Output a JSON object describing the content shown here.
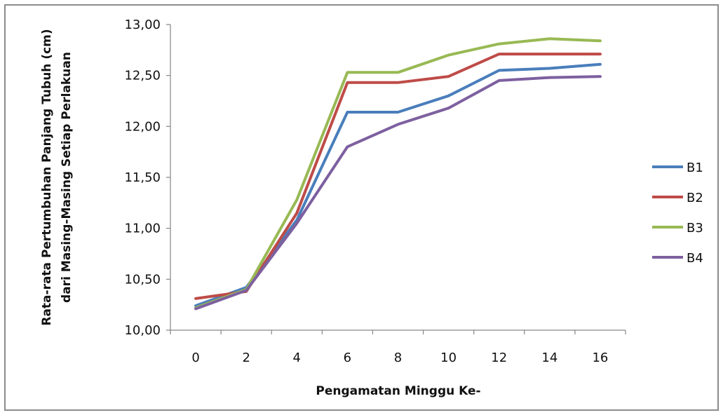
{
  "chart_data": {
    "type": "line",
    "title": "",
    "xlabel": "Pengamatan Minggu Ke-",
    "ylabel_line1": "Rata-rata Pertumbuhan Panjang Tubuh (cm)",
    "ylabel_line2": "dari Masing-Masing  Setiap Perlakuan",
    "categories": [
      "0",
      "2",
      "4",
      "6",
      "8",
      "10",
      "12",
      "14",
      "16"
    ],
    "y_ticks": [
      "10,00",
      "10,50",
      "11,00",
      "11,50",
      "12,00",
      "12,50",
      "13,00"
    ],
    "ylim": [
      10.0,
      13.0
    ],
    "grid": false,
    "legend_position": "right",
    "series": [
      {
        "name": "B1",
        "color": "#4a7ebb",
        "values": [
          10.24,
          10.42,
          11.08,
          12.14,
          12.14,
          12.3,
          12.55,
          12.57,
          12.61
        ]
      },
      {
        "name": "B2",
        "color": "#be4b48",
        "values": [
          10.31,
          10.38,
          11.15,
          12.43,
          12.43,
          12.49,
          12.71,
          12.71,
          12.71
        ]
      },
      {
        "name": "B3",
        "color": "#98b954",
        "values": [
          10.22,
          10.4,
          11.28,
          12.53,
          12.53,
          12.7,
          12.81,
          12.86,
          12.84
        ]
      },
      {
        "name": "B4",
        "color": "#7d60a0",
        "values": [
          10.21,
          10.39,
          11.05,
          11.8,
          12.02,
          12.18,
          12.45,
          12.48,
          12.49
        ]
      }
    ]
  }
}
